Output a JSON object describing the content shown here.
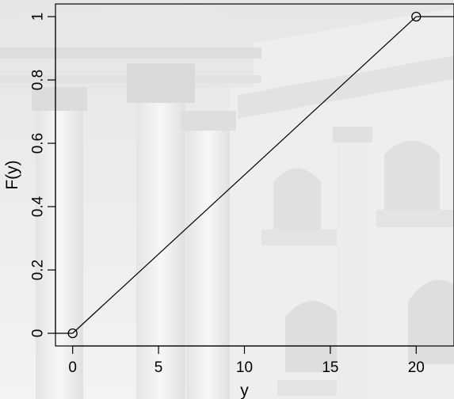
{
  "chart_data": {
    "type": "line",
    "xlabel": "y",
    "ylabel": "F(y)",
    "xlim": [
      -1.0,
      22.2
    ],
    "ylim": [
      -0.04,
      1.04
    ],
    "x_ticks": [
      0,
      5,
      10,
      15,
      20
    ],
    "x_tick_labels": [
      "0",
      "5",
      "10",
      "15",
      "20"
    ],
    "y_ticks": [
      0,
      0.2,
      0.4,
      0.6,
      0.8,
      1
    ],
    "y_tick_labels": [
      "0",
      "0.2",
      "0.4",
      "0.6",
      "0.8",
      "1"
    ],
    "grid": false,
    "series": [
      {
        "x": [
          0,
          20
        ],
        "y": [
          0,
          1
        ],
        "color": "#000000",
        "marker": "open-circle"
      }
    ],
    "tails": [
      {
        "x": [
          -1.0,
          0
        ],
        "y": [
          0,
          0
        ]
      },
      {
        "x": [
          20,
          22.2
        ],
        "y": [
          1,
          1
        ]
      }
    ]
  },
  "background": {
    "description_icon": "building-photo-icon",
    "tint": "#e9e9e9"
  }
}
